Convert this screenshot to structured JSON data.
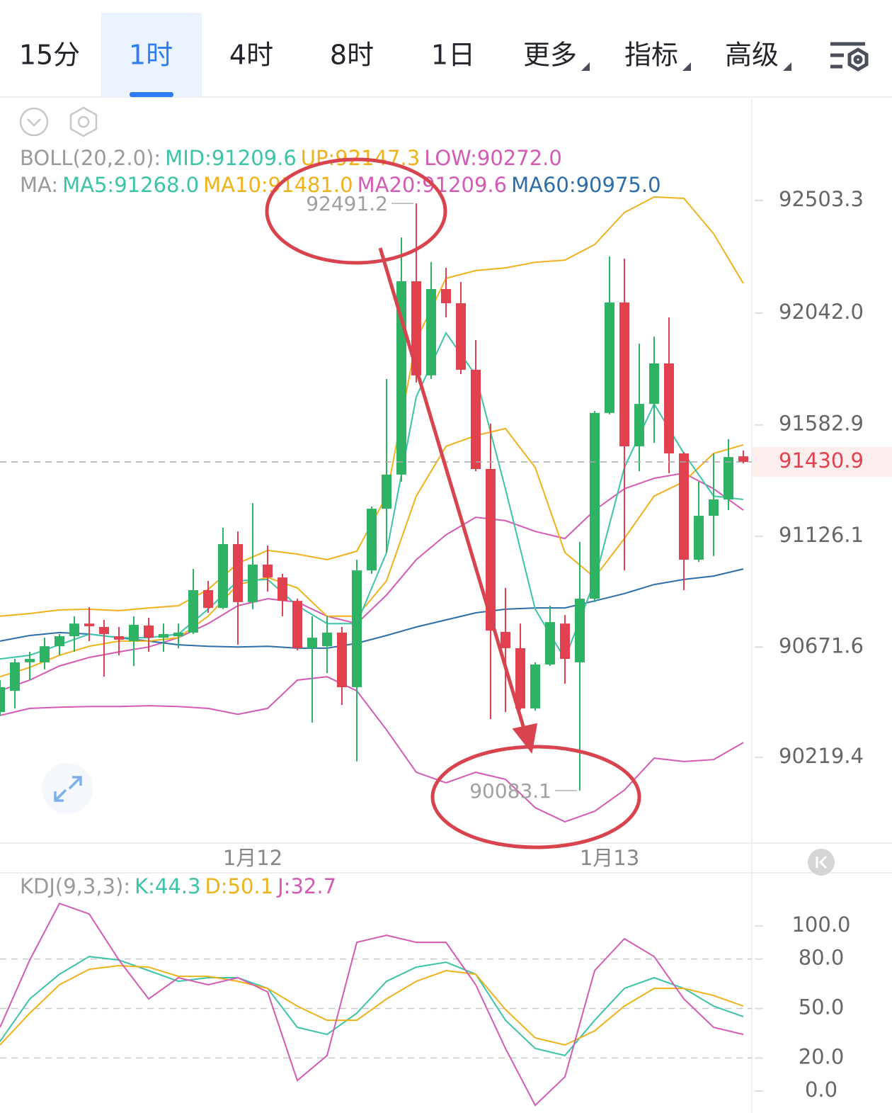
{
  "header": {
    "tabs": [
      "15分",
      "1时",
      "4时",
      "8时",
      "1日"
    ],
    "menus": [
      "更多",
      "指标",
      "高级"
    ],
    "selected": 1
  },
  "chart_data": [
    {
      "type": "candlestick",
      "categories": [
        null,
        null,
        null,
        null,
        null,
        null,
        null,
        null,
        null,
        null,
        null,
        null,
        null,
        null,
        null,
        null,
        null,
        "1月12",
        null,
        null,
        null,
        null,
        null,
        null,
        null,
        null,
        null,
        null,
        null,
        null,
        null,
        null,
        null,
        null,
        null,
        null,
        null,
        null,
        null,
        null,
        null,
        "1月13",
        null,
        null,
        null,
        null,
        null,
        null,
        null,
        null,
        null
      ],
      "ohlc": [
        [
          90405,
          90536,
          90391,
          90507
        ],
        [
          90492,
          90623,
          90420,
          90609
        ],
        [
          90609,
          90652,
          90536,
          90623
        ],
        [
          90609,
          90710,
          90580,
          90675
        ],
        [
          90675,
          90725,
          90638,
          90716
        ],
        [
          90716,
          90798,
          90652,
          90768
        ],
        [
          90768,
          90835,
          90696,
          90757
        ],
        [
          90754,
          90783,
          90550,
          90725
        ],
        [
          90716,
          90754,
          90638,
          90702
        ],
        [
          90696,
          90798,
          90594,
          90763
        ],
        [
          90760,
          90792,
          90652,
          90710
        ],
        [
          90710,
          90768,
          90652,
          90725
        ],
        [
          90716,
          90768,
          90667,
          90731
        ],
        [
          90731,
          90992,
          90725,
          90905
        ],
        [
          90905,
          90943,
          90812,
          90832
        ],
        [
          90832,
          91161,
          90827,
          91094
        ],
        [
          91094,
          91146,
          90681,
          90856
        ],
        [
          90856,
          91262,
          90827,
          91010
        ],
        [
          91010,
          91088,
          90899,
          90957
        ],
        [
          90957,
          90972,
          90798,
          90861
        ],
        [
          90861,
          90870,
          90658,
          90667
        ],
        [
          90667,
          90798,
          90362,
          90710
        ],
        [
          90675,
          90798,
          90565,
          90731
        ],
        [
          90731,
          90754,
          90434,
          90507
        ],
        [
          90507,
          91030,
          90202,
          90986
        ],
        [
          90986,
          91248,
          90972,
          91239
        ],
        [
          91239,
          91771,
          91059,
          91379
        ],
        [
          91379,
          92352,
          91350,
          92172
        ],
        [
          92172,
          92491.2,
          91757,
          91786
        ],
        [
          91786,
          92251,
          91771,
          92140
        ],
        [
          92140,
          92227,
          92024,
          92082
        ],
        [
          92082,
          92169,
          91791,
          91809
        ],
        [
          91809,
          91931,
          91393,
          91402
        ],
        [
          91402,
          91588,
          90376,
          90739
        ],
        [
          90734,
          90914,
          90405,
          90667
        ],
        [
          90667,
          90768,
          90414,
          90420
        ],
        [
          90420,
          90609,
          90411,
          90600
        ],
        [
          90600,
          90841,
          90594,
          90774
        ],
        [
          90768,
          90803,
          90521,
          90623
        ],
        [
          90609,
          91103,
          90083.1,
          90870
        ],
        [
          90870,
          91640,
          90856,
          91632
        ],
        [
          91632,
          92274,
          91626,
          92085
        ],
        [
          92085,
          92265,
          90986,
          91495
        ],
        [
          91495,
          91916,
          91393,
          91669
        ],
        [
          91669,
          91945,
          91509,
          91835
        ],
        [
          91835,
          92024,
          91385,
          91466
        ],
        [
          91466,
          91472,
          90905,
          91030
        ],
        [
          91030,
          91350,
          91021,
          91210
        ],
        [
          91210,
          91466,
          91045,
          91277
        ],
        [
          91277,
          91524,
          91233,
          91451
        ],
        [
          91454,
          91478,
          91425,
          91430.9
        ]
      ],
      "up_color": "#2eb364",
      "down_color": "#e2414f",
      "ylim": [
        89867.6,
        92918.9
      ],
      "yticks": [
        92503.3,
        {
          "value": 92042,
          "label": "92042.0"
        },
        91582.9,
        91126.1,
        90671.6,
        90219.4
      ],
      "last_price": 91430.9,
      "legend": [
        {
          "label": "BOLL(20,2.0):",
          "items": [
            {
              "text": "MID:91209.6",
              "color": "#3cc4a8"
            },
            {
              "text": "UP:92147.3",
              "color": "#f0b21c"
            },
            {
              "text": "LOW:90272.0",
              "color": "#d45bb5"
            }
          ]
        },
        {
          "label": "MA:",
          "items": [
            {
              "text": "MA5:91268.0",
              "color": "#3cc4a8"
            },
            {
              "text": "MA10:91481.0",
              "color": "#f0b21c"
            },
            {
              "text": "MA20:91209.6",
              "color": "#d45bb5"
            },
            {
              "text": "MA60:90975.0",
              "color": "#2d6ea8"
            }
          ]
        }
      ],
      "overlay_x": [
        0,
        2,
        4,
        6,
        8,
        10,
        12,
        14,
        16,
        18,
        20,
        22,
        24,
        26,
        28,
        30,
        32,
        34,
        36,
        38,
        40,
        42,
        44,
        46,
        48,
        50
      ],
      "overlays": [
        {
          "color": "#f0b21c",
          "values": [
            90798,
            90809,
            90824,
            90827,
            90821,
            90832,
            90841,
            90908,
            91015,
            91068,
            91053,
            91030,
            91065,
            91291,
            91931,
            92184,
            92216,
            92227,
            92250,
            92259,
            92323,
            92454,
            92518,
            92512,
            92367,
            92163
          ]
        },
        {
          "color": "#d45bb5",
          "values": [
            90391,
            90420,
            90425,
            90428,
            90428,
            90431,
            90428,
            90420,
            90396,
            90420,
            90536,
            90550,
            90492,
            90332,
            90158,
            90115,
            90158,
            90129,
            90013,
            89955,
            89998,
            90085,
            90216,
            90202,
            90210,
            90280
          ]
        },
        {
          "color": "#d45bb5",
          "values": [
            90492,
            90536,
            90594,
            90629,
            90652,
            90672,
            90710,
            90768,
            90841,
            90870,
            90856,
            90798,
            90768,
            90885,
            91030,
            91132,
            91204,
            91190,
            91146,
            91117,
            91233,
            91321,
            91364,
            91385,
            91321,
            91233
          ]
        },
        {
          "color": "#2d6ea8",
          "values": [
            90696,
            90719,
            90731,
            90725,
            90710,
            90696,
            90681,
            90675,
            90672,
            90675,
            90667,
            90667,
            90687,
            90719,
            90754,
            90783,
            90812,
            90827,
            90832,
            90832,
            90861,
            90891,
            90928,
            90949,
            90963,
            90992
          ]
        },
        {
          "color": "#f0b21c",
          "values": [
            90550,
            90588,
            90638,
            90675,
            90696,
            90696,
            90710,
            90798,
            90928,
            90957,
            90914,
            90798,
            90798,
            90943,
            91291,
            91495,
            91539,
            91568,
            91408,
            91059,
            90957,
            91117,
            91291,
            91350,
            91466,
            91501
          ]
        },
        {
          "color": "#3cc4a8",
          "values": [
            90623,
            90638,
            90681,
            90725,
            90710,
            90710,
            90725,
            90827,
            90943,
            90949,
            90841,
            90768,
            90768,
            91059,
            91698,
            91960,
            91786,
            91320,
            90827,
            90623,
            90943,
            91408,
            91669,
            91466,
            91291,
            91277
          ]
        }
      ]
    },
    {
      "type": "line",
      "label": "KDJ(9,3,3):",
      "x": [
        0,
        2,
        4,
        6,
        8,
        10,
        12,
        14,
        16,
        18,
        20,
        22,
        24,
        26,
        28,
        30,
        32,
        34,
        36,
        38,
        40,
        42,
        44,
        46,
        48,
        50
      ],
      "ylim": [
        -13.3,
        128.8
      ],
      "yticks": [
        {
          "value": 100,
          "label": "100.0"
        },
        {
          "value": 80,
          "label": "80.0"
        },
        {
          "value": 50,
          "label": "50.0"
        },
        {
          "value": 20,
          "label": "20.0"
        },
        {
          "value": 0,
          "label": "0.0"
        }
      ],
      "grid": true,
      "series": [
        {
          "name": "K:44.3",
          "color": "#3cc4a8",
          "values": [
            30.0,
            55.8,
            70.8,
            81.5,
            79.4,
            73.0,
            66.5,
            68.7,
            68.7,
            62.2,
            38.6,
            34.3,
            47.2,
            66.5,
            75.1,
            78.1,
            70.8,
            42.9,
            25.8,
            21.5,
            42.9,
            62.2,
            68.7,
            62.2,
            51.5,
            45.1
          ]
        },
        {
          "name": "D:50.1",
          "color": "#f0b21c",
          "values": [
            27.9,
            47.2,
            64.4,
            73.8,
            76.0,
            75.1,
            69.5,
            69.5,
            66.5,
            62.2,
            51.5,
            42.9,
            42.9,
            55.8,
            66.5,
            73.0,
            70.8,
            49.4,
            32.2,
            27.9,
            36.5,
            51.5,
            62.2,
            62.2,
            57.9,
            51.5
          ]
        },
        {
          "name": "J:32.7",
          "color": "#d45bb5",
          "values": [
            38.6,
            79.4,
            113.7,
            107.3,
            79.4,
            55.8,
            68.7,
            64.4,
            68.7,
            60.1,
            6.4,
            21.5,
            90.1,
            94.4,
            90.1,
            90.1,
            64.4,
            25.8,
            -8.6,
            8.6,
            73.0,
            92.3,
            81.5,
            55.8,
            38.6,
            34.3
          ]
        }
      ]
    }
  ]
}
